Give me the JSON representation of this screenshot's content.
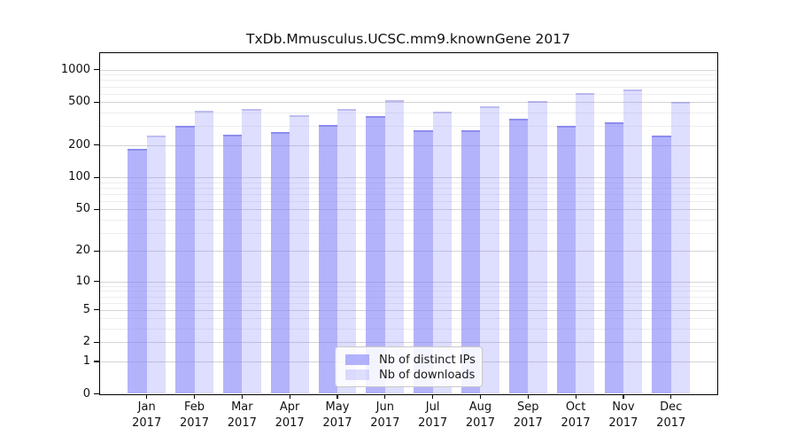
{
  "chart_data": {
    "type": "bar",
    "title": "TxDb.Mmusculus.UCSC.mm9.knownGene 2017",
    "categories": [
      "Jan 2017",
      "Feb 2017",
      "Mar 2017",
      "Apr 2017",
      "May 2017",
      "Jun 2017",
      "Jul 2017",
      "Aug 2017",
      "Sep 2017",
      "Oct 2017",
      "Nov 2017",
      "Dec 2017"
    ],
    "series": [
      {
        "name": "Nb of distinct IPs",
        "color": "#a9a9f4",
        "values": [
          185,
          300,
          250,
          265,
          310,
          370,
          275,
          275,
          350,
          300,
          325,
          245
        ]
      },
      {
        "name": "Nb of downloads",
        "color": "#dbdbf9",
        "values": [
          245,
          420,
          430,
          380,
          435,
          520,
          410,
          460,
          510,
          610,
          660,
          505
        ]
      }
    ],
    "xlabel": "",
    "ylabel": "",
    "yscale": "log1p",
    "ylim": [
      0,
      1370
    ],
    "yticks": [
      0,
      1,
      2,
      5,
      10,
      20,
      50,
      100,
      200,
      500,
      1000
    ],
    "minor_gridlines": [
      3,
      4,
      6,
      7,
      8,
      9,
      30,
      40,
      60,
      70,
      80,
      90,
      300,
      400,
      600,
      700,
      800,
      900
    ],
    "grid": "on",
    "legend_position": "inside-bottom-center",
    "colors": {
      "grid_major": "#d4d4d4",
      "grid_minor": "#ededed",
      "axis": "#000000",
      "background": "#ffffff"
    }
  }
}
